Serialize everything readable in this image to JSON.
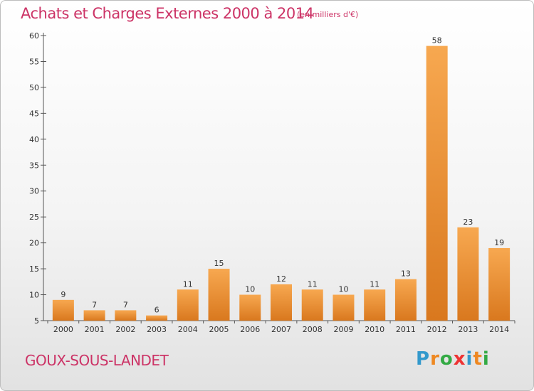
{
  "chart_data": {
    "type": "bar",
    "title": "Achats et Charges Externes 2000 à 2014",
    "subtitle": "(en milliers d'€)",
    "categories": [
      "2000",
      "2001",
      "2002",
      "2003",
      "2004",
      "2005",
      "2006",
      "2007",
      "2008",
      "2009",
      "2010",
      "2011",
      "2012",
      "2013",
      "2014"
    ],
    "values": [
      9,
      7,
      7,
      6,
      11,
      15,
      10,
      12,
      11,
      10,
      11,
      13,
      58,
      23,
      19
    ],
    "ylim": [
      5,
      60
    ],
    "yticks": [
      5,
      10,
      15,
      20,
      25,
      30,
      35,
      40,
      45,
      50,
      55,
      60
    ],
    "grid": false,
    "bar_color": "#f5a04a",
    "bar_color_dark": "#d9781e"
  },
  "footer": {
    "commune": "GOUX-SOUS-LANDET",
    "logo_letters": [
      "P",
      "r",
      "o",
      "x",
      "i",
      "t",
      "i"
    ],
    "logo_colors": [
      "#3399cc",
      "#ee8822",
      "#33aa44",
      "#ee3333",
      "#3399cc",
      "#ee8822",
      "#33aa44"
    ]
  },
  "colors": {
    "accent": "#cc3366",
    "axis": "#555555"
  }
}
